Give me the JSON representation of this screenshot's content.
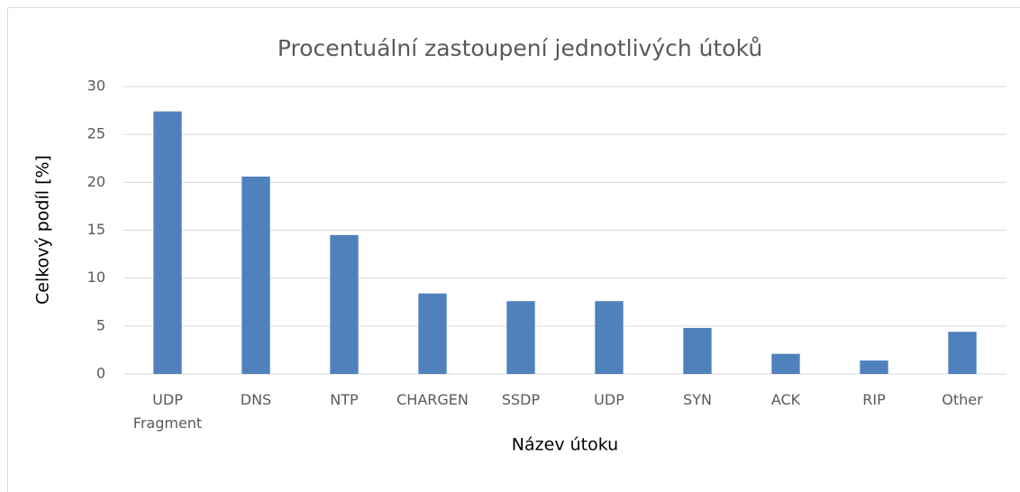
{
  "chart_data": {
    "type": "bar",
    "title": "Procentuální zastoupení jednotlivých útoků",
    "xlabel": "Název útoku",
    "ylabel": "Celkový podíl [%]",
    "categories": [
      "UDP Fragment",
      "DNS",
      "NTP",
      "CHARGEN",
      "SSDP",
      "UDP",
      "SYN",
      "ACK",
      "RIP",
      "Other"
    ],
    "values": [
      27.4,
      20.6,
      14.5,
      8.4,
      7.6,
      7.6,
      4.8,
      2.1,
      1.4,
      4.4
    ],
    "color": "#4f81bd",
    "ylim": [
      0,
      30
    ],
    "yticks": [
      0,
      5,
      10,
      15,
      20,
      25,
      30
    ],
    "grid": true
  }
}
